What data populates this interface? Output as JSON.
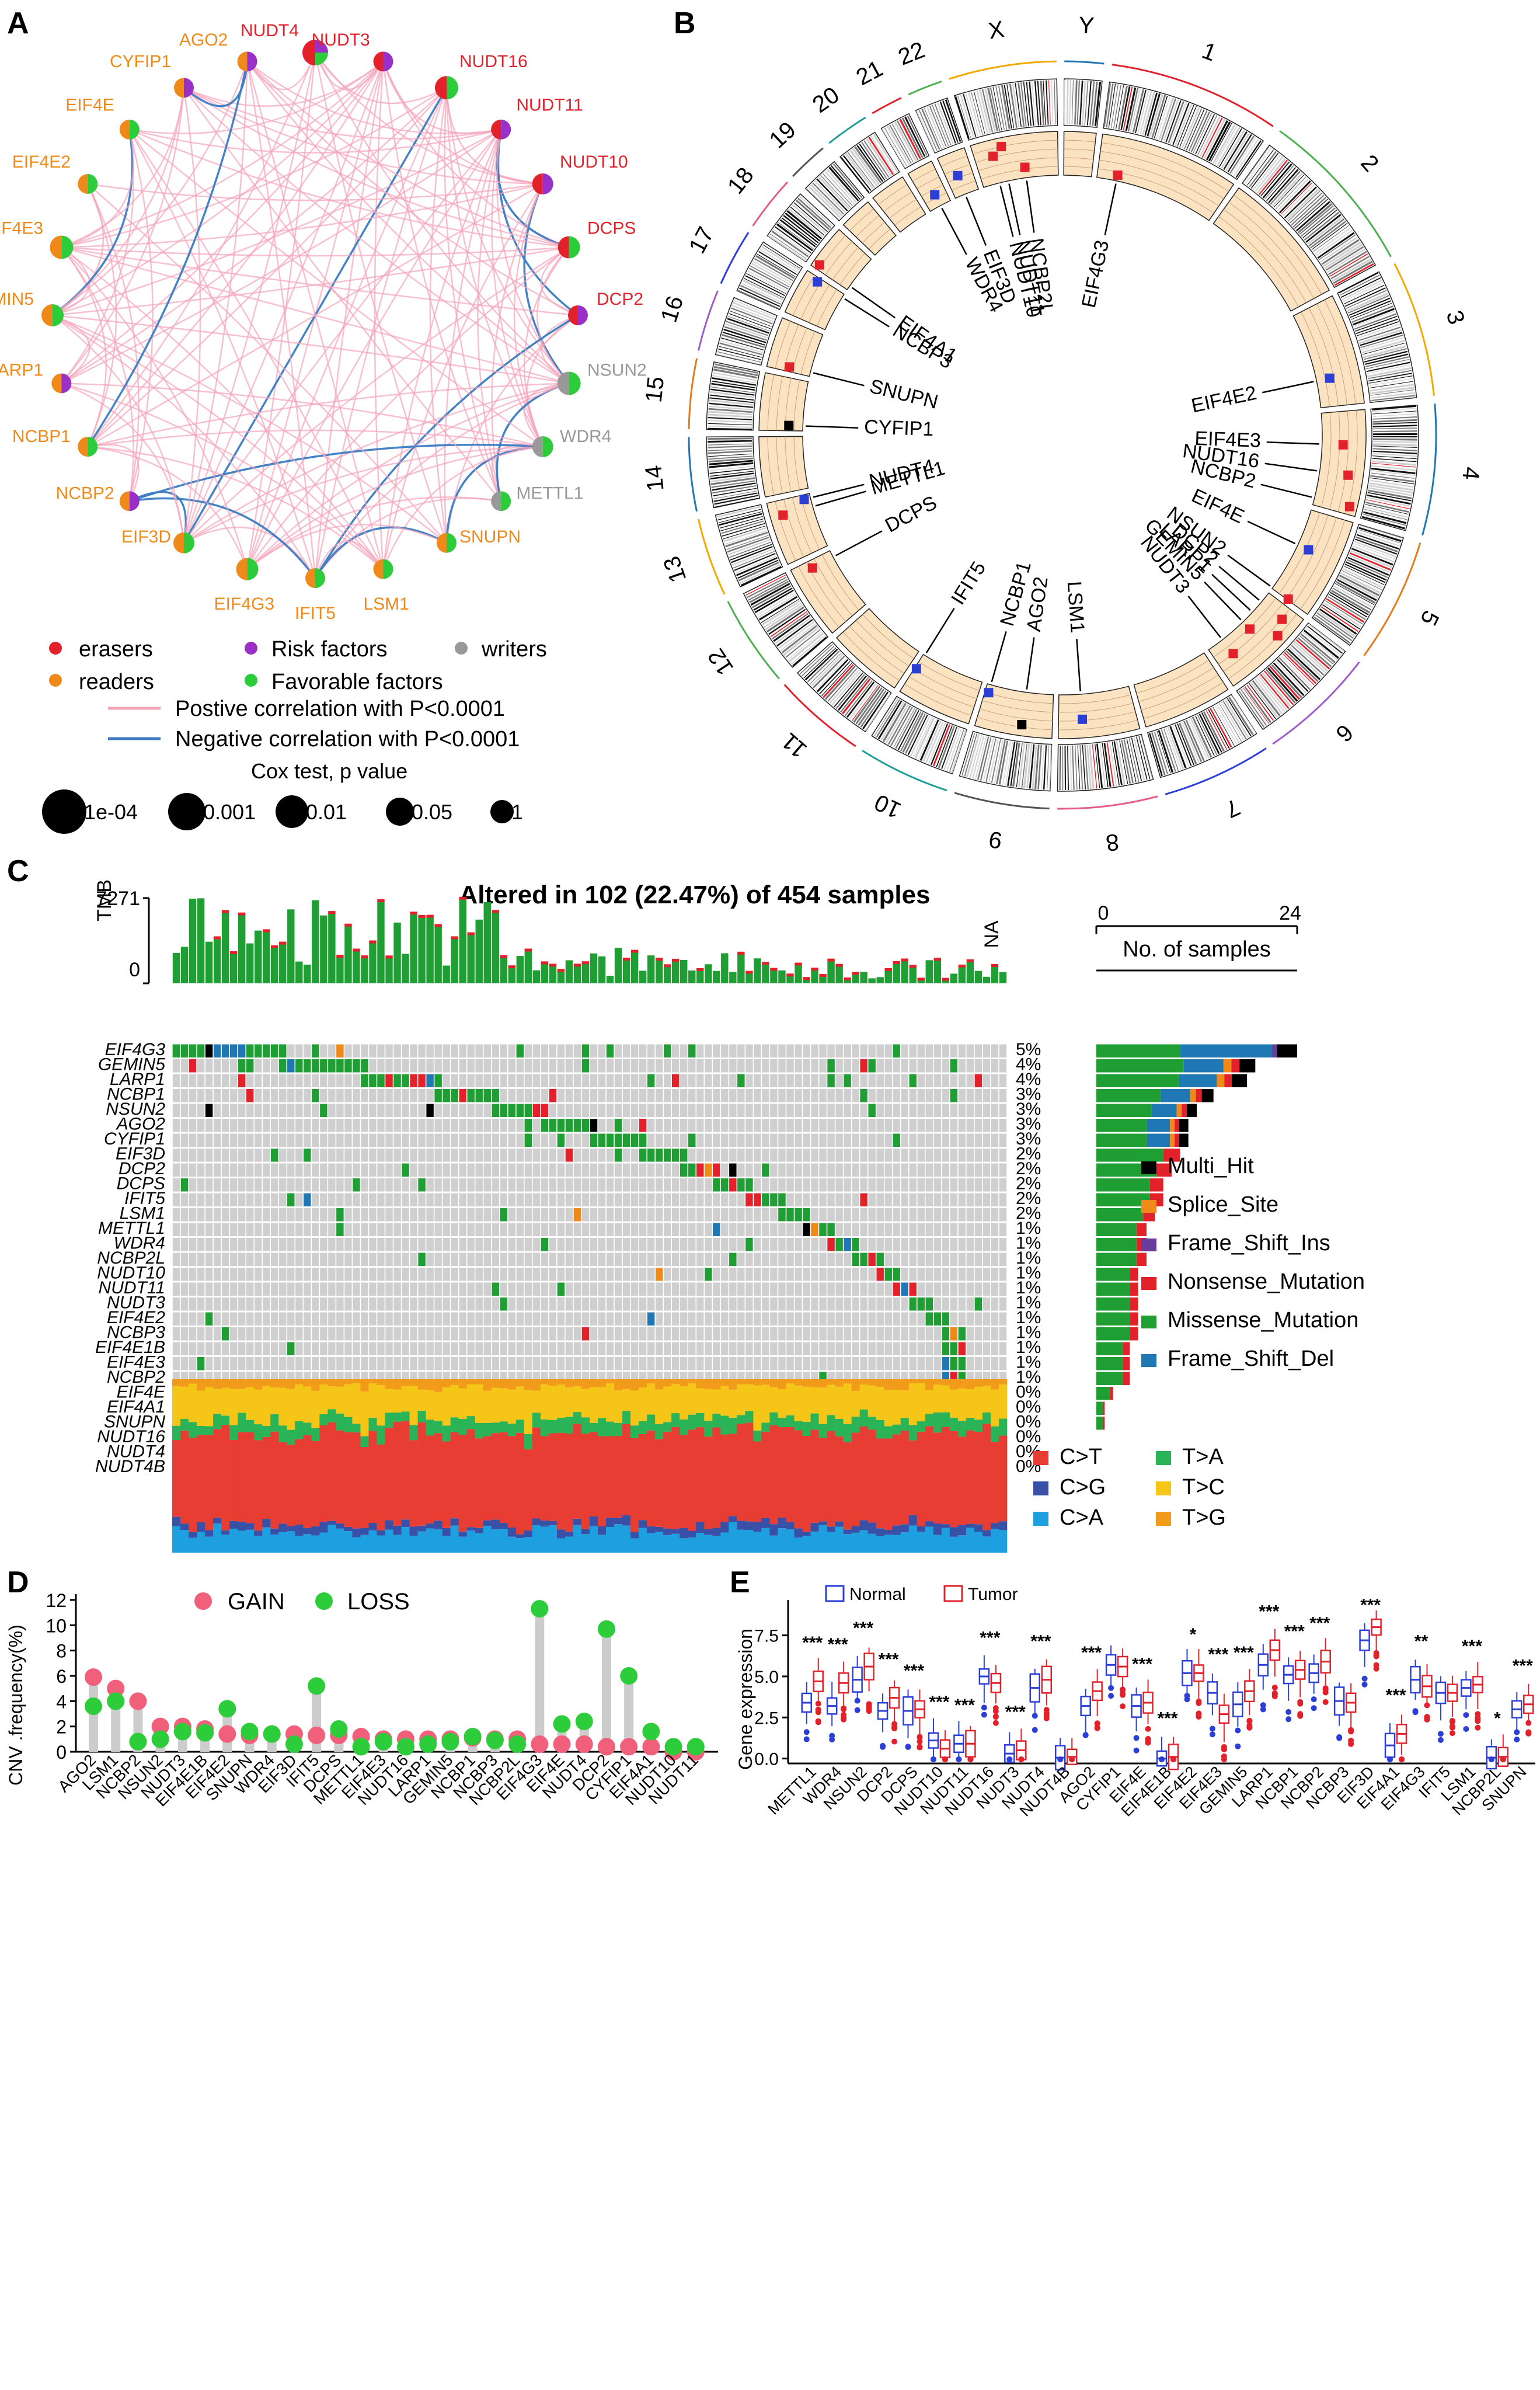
{
  "colors": {
    "eraser": "#e3212b",
    "reader": "#ef8a1a",
    "risk": "#9b30c9",
    "writer": "#999999",
    "favorable": "#2dcc3a",
    "pos_edge": "#f4a4bb",
    "neg_edge": "#3b7cc4",
    "missense": "#1f9e33",
    "nonsense": "#e3212b",
    "fsdel": "#1f78b4",
    "fsins": "#6a3d9a",
    "splice": "#ef8a1a",
    "multi": "#000000",
    "gain": "#f0607a",
    "loss": "#2dcc3a",
    "normal": "#2b3ed6",
    "tumor": "#e3212b",
    "sub_ct": "#e83d32",
    "sub_cg": "#3851a6",
    "sub_ca": "#1e9fe0",
    "sub_ta": "#2bb357",
    "sub_tc": "#f5c518",
    "sub_tg": "#f29a1a"
  },
  "panel_labels": {
    "a": "A",
    "b": "B",
    "c": "C",
    "d": "D",
    "e": "E"
  },
  "panelA": {
    "nodes": [
      {
        "name": "NUDT4",
        "type": "eraser",
        "role": "mixed"
      },
      {
        "name": "NUDT3",
        "type": "eraser",
        "role": "risk"
      },
      {
        "name": "NUDT16",
        "type": "eraser",
        "role": "favorable"
      },
      {
        "name": "NUDT11",
        "type": "eraser",
        "role": "risk"
      },
      {
        "name": "NUDT10",
        "type": "eraser",
        "role": "risk"
      },
      {
        "name": "DCPS",
        "type": "eraser",
        "role": "favorable"
      },
      {
        "name": "DCP2",
        "type": "eraser",
        "role": "risk"
      },
      {
        "name": "NSUN2",
        "type": "writer",
        "role": "favorable"
      },
      {
        "name": "WDR4",
        "type": "writer",
        "role": "favorable"
      },
      {
        "name": "METTL1",
        "type": "writer",
        "role": "favorable"
      },
      {
        "name": "SNUPN",
        "type": "reader",
        "role": "favorable"
      },
      {
        "name": "LSM1",
        "type": "reader",
        "role": "favorable"
      },
      {
        "name": "IFIT5",
        "type": "reader",
        "role": "favorable"
      },
      {
        "name": "EIF4G3",
        "type": "reader",
        "role": "favorable"
      },
      {
        "name": "EIF3D",
        "type": "reader",
        "role": "favorable"
      },
      {
        "name": "NCBP2",
        "type": "reader",
        "role": "risk"
      },
      {
        "name": "NCBP1",
        "type": "reader",
        "role": "favorable"
      },
      {
        "name": "LARP1",
        "type": "reader",
        "role": "risk"
      },
      {
        "name": "GEMIN5",
        "type": "reader",
        "role": "favorable"
      },
      {
        "name": "EIF4E3",
        "type": "reader",
        "role": "favorable"
      },
      {
        "name": "EIF4E2",
        "type": "reader",
        "role": "favorable"
      },
      {
        "name": "EIF4E",
        "type": "reader",
        "role": "favorable"
      },
      {
        "name": "CYFIP1",
        "type": "reader",
        "role": "risk"
      },
      {
        "name": "AGO2",
        "type": "reader",
        "role": "risk"
      }
    ],
    "legend": {
      "erasers": "erasers",
      "readers": "readers",
      "risk": "Risk factors",
      "favorable": "Favorable factors",
      "writers": "writers",
      "pos": "Postive correlation with P<0.0001",
      "neg": "Negative correlation with P<0.0001",
      "cox_title": "Cox test, p  value",
      "sizes": [
        "1e-04",
        "0.001",
        "0.01",
        "0.05",
        "1"
      ]
    }
  },
  "panelB": {
    "chromosomes": [
      "1",
      "2",
      "3",
      "4",
      "5",
      "6",
      "7",
      "8",
      "9",
      "10",
      "11",
      "12",
      "13",
      "14",
      "15",
      "16",
      "17",
      "18",
      "19",
      "20",
      "21",
      "22",
      "X",
      "Y"
    ],
    "genes": [
      "EIF4G3",
      "EIF4E2",
      "EIF4E3",
      "NUDT16",
      "NCBP2",
      "EIF4E",
      "NSUN2",
      "DCP2",
      "LARP1",
      "GEMIN5",
      "NUDT3",
      "LSM1",
      "AGO2",
      "NCBP1",
      "IFIT5",
      "DCPS",
      "METTL1",
      "NUDT4",
      "CYFIP1",
      "SNUPN",
      "NCBP3",
      "EIF4A1",
      "WDR4",
      "EIF3D",
      "NUDT10",
      "NUDT11",
      "NCBP2L"
    ]
  },
  "panelC": {
    "title": "Altered in 102 (22.47%) of 454 samples",
    "tmb_label": "TMB",
    "tmb_max": "7271",
    "tmb_min": "0",
    "na_label": "NA",
    "nsamples_label": "No. of samples",
    "nsamples_min": "0",
    "nsamples_max": "24",
    "genes": [
      "EIF4G3",
      "GEMIN5",
      "LARP1",
      "NCBP1",
      "NSUN2",
      "AGO2",
      "CYFIP1",
      "EIF3D",
      "DCP2",
      "DCPS",
      "IFIT5",
      "LSM1",
      "METTL1",
      "WDR4",
      "NCBP2L",
      "NUDT10",
      "NUDT11",
      "NUDT3",
      "EIF4E2",
      "NCBP3",
      "EIF4E1B",
      "EIF4E3",
      "NCBP2",
      "EIF4E",
      "EIF4A1",
      "SNUPN",
      "NUDT16",
      "NUDT4",
      "NUDT4B"
    ],
    "pcts": [
      "5%",
      "4%",
      "4%",
      "3%",
      "3%",
      "3%",
      "3%",
      "2%",
      "2%",
      "2%",
      "2%",
      "2%",
      "1%",
      "1%",
      "1%",
      "1%",
      "1%",
      "1%",
      "1%",
      "1%",
      "1%",
      "1%",
      "1%",
      "0%",
      "0%",
      "0%",
      "0%",
      "0%",
      "0%"
    ],
    "variant_legend": [
      "Multi_Hit",
      "Splice_Site",
      "Frame_Shift_Ins",
      "Nonsense_Mutation",
      "Missense_Mutation",
      "Frame_Shift_Del"
    ],
    "sub_legend": [
      "C>T",
      "C>G",
      "C>A",
      "T>A",
      "T>C",
      "T>G"
    ]
  },
  "chart_data": [
    {
      "type": "bar",
      "panel": "D",
      "title": "",
      "ylabel": "CNV .frequency(%)",
      "ylim": [
        0,
        12
      ],
      "yticks": [
        "0",
        "2",
        "4",
        "6",
        "8",
        "10",
        "12"
      ],
      "legend": [
        "GAIN",
        "LOSS"
      ],
      "categories": [
        "AGO2",
        "LSM1",
        "NCBP2",
        "NSUN2",
        "NUDT3",
        "EIF4E1B",
        "EIF4E2",
        "SNUPN",
        "WDR4",
        "EIF3D",
        "IFIT5",
        "DCPS",
        "METTL1",
        "EIF4E3",
        "NUDT16",
        "LARP1",
        "GEMIN5",
        "NCBP1",
        "NCBP3",
        "NCBP2L",
        "EIF4G3",
        "EIF4E",
        "NUDT4",
        "DCP2",
        "CYFIP1",
        "EIF4A1",
        "NUDT10",
        "NUDT11"
      ],
      "series": [
        {
          "name": "GAIN",
          "values": [
            5.9,
            5.0,
            4.0,
            2.0,
            2.0,
            1.8,
            1.4,
            1.3,
            1.4,
            1.4,
            1.3,
            1.3,
            1.2,
            1.0,
            1.0,
            1.0,
            1.0,
            1.1,
            1.0,
            1.0,
            0.6,
            0.6,
            0.6,
            0.4,
            0.4,
            0.4,
            0.0,
            0.0
          ]
        },
        {
          "name": "LOSS",
          "values": [
            3.6,
            4.0,
            0.8,
            1.0,
            1.6,
            1.5,
            3.4,
            1.6,
            1.4,
            0.6,
            5.2,
            1.8,
            0.4,
            0.8,
            0.4,
            0.6,
            0.8,
            1.2,
            0.9,
            0.6,
            11.3,
            2.2,
            2.4,
            9.7,
            6.0,
            1.6,
            0.4,
            0.4
          ]
        }
      ]
    },
    {
      "type": "box",
      "panel": "E",
      "ylabel": "Gene expression",
      "ylim": [
        -0.3,
        9.3
      ],
      "yticks": [
        "0.0",
        "2.5",
        "5.0",
        "7.5"
      ],
      "legend": [
        "Normal",
        "Tumor"
      ],
      "categories": [
        "METTL1",
        "WDR4",
        "NSUN2",
        "DCP2",
        "DCPS",
        "NUDT10",
        "NUDT11",
        "NUDT16",
        "NUDT3",
        "NUDT4",
        "NUDT4B",
        "AGO2",
        "CYFIP1",
        "EIF4E",
        "EIF4E1B",
        "EIF4E2",
        "EIF4E3",
        "GEMIN5",
        "LARP1",
        "NCBP1",
        "NCBP2",
        "NCBP3",
        "EIF3D",
        "EIF4A1",
        "EIF4G3",
        "IFIT5",
        "LSM1",
        "NCBP2L",
        "SNUPN"
      ],
      "normal_median": [
        3.4,
        3.2,
        4.8,
        2.9,
        2.9,
        1.1,
        0.9,
        5.0,
        0.3,
        4.3,
        0.05,
        3.2,
        5.7,
        3.2,
        0.0,
        5.2,
        4.0,
        3.3,
        5.7,
        5.1,
        5.2,
        3.5,
        7.2,
        0.8,
        4.8,
        4.0,
        4.3,
        0.05,
        3.0
      ],
      "tumor_median": [
        4.7,
        4.6,
        5.6,
        3.7,
        3.0,
        0.6,
        0.9,
        4.6,
        0.5,
        4.8,
        0.1,
        4.1,
        5.6,
        3.4,
        0.1,
        5.2,
        2.7,
        4.1,
        6.6,
        5.4,
        5.9,
        3.4,
        8.0,
        1.5,
        4.4,
        4.0,
        4.5,
        0.1,
        3.3
      ],
      "significance": [
        "***",
        "***",
        "***",
        "***",
        "***",
        "***",
        "***",
        "***",
        "***",
        "***",
        "",
        "***",
        "",
        "***",
        "***",
        "*",
        "***",
        "***",
        "***",
        "***",
        "***",
        "",
        "***",
        "***",
        "**",
        "",
        "***",
        "*",
        "***"
      ]
    }
  ]
}
